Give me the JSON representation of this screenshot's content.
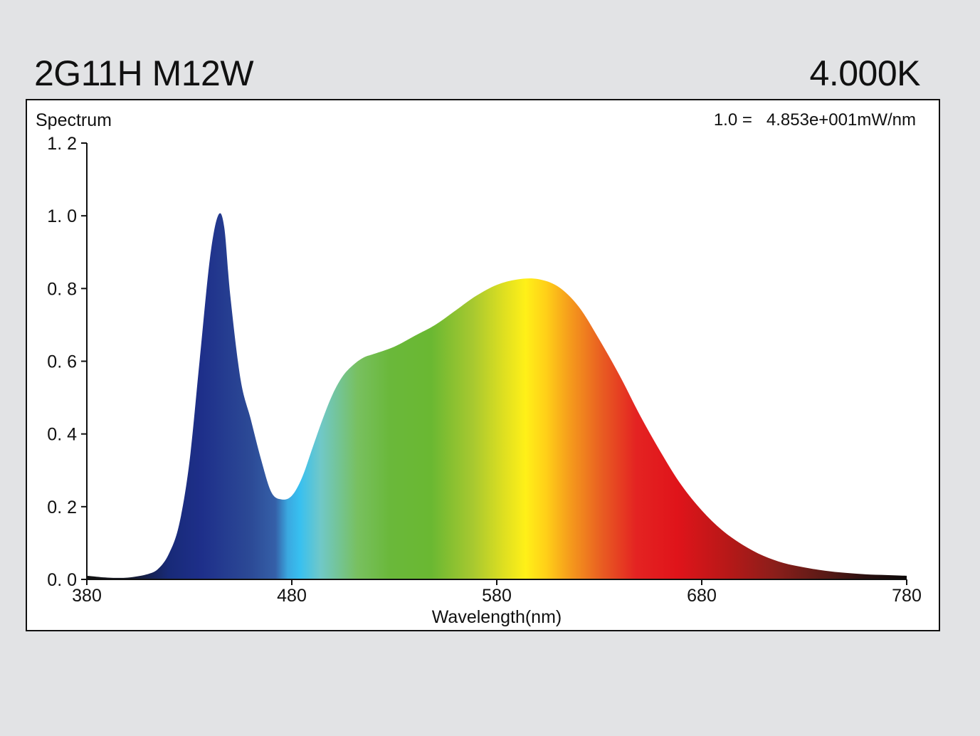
{
  "header": {
    "product": "2G11H M12W",
    "cct": "4.000K"
  },
  "panel": {
    "title": "Spectrum",
    "scale_note": "1.0 =   4.853e+001mW/nm"
  },
  "chart_data": {
    "type": "area",
    "title": "Spectrum",
    "xlabel": "Wavelength(nm)",
    "ylabel": "",
    "xlim": [
      380,
      780
    ],
    "ylim": [
      0.0,
      1.2
    ],
    "x_ticks": [
      380,
      480,
      580,
      680,
      780
    ],
    "y_ticks": [
      0.0,
      0.2,
      0.4,
      0.6,
      0.8,
      1.0,
      1.2
    ],
    "y_tick_labels": [
      "0. 0",
      "0. 2",
      "0. 4",
      "0. 6",
      "0. 8",
      "1. 0",
      "1. 2"
    ],
    "grid": false,
    "fill": "visible-spectrum gradient",
    "points": [
      [
        380,
        0.01
      ],
      [
        390,
        0.005
      ],
      [
        400,
        0.005
      ],
      [
        410,
        0.015
      ],
      [
        415,
        0.03
      ],
      [
        420,
        0.07
      ],
      [
        425,
        0.15
      ],
      [
        430,
        0.32
      ],
      [
        435,
        0.6
      ],
      [
        440,
        0.88
      ],
      [
        444,
        1.0
      ],
      [
        447,
        0.97
      ],
      [
        450,
        0.78
      ],
      [
        455,
        0.55
      ],
      [
        460,
        0.44
      ],
      [
        465,
        0.33
      ],
      [
        470,
        0.24
      ],
      [
        475,
        0.22
      ],
      [
        480,
        0.23
      ],
      [
        485,
        0.28
      ],
      [
        490,
        0.36
      ],
      [
        495,
        0.44
      ],
      [
        500,
        0.51
      ],
      [
        505,
        0.56
      ],
      [
        510,
        0.59
      ],
      [
        515,
        0.61
      ],
      [
        520,
        0.62
      ],
      [
        530,
        0.64
      ],
      [
        540,
        0.67
      ],
      [
        550,
        0.7
      ],
      [
        560,
        0.74
      ],
      [
        570,
        0.78
      ],
      [
        580,
        0.81
      ],
      [
        590,
        0.825
      ],
      [
        600,
        0.826
      ],
      [
        610,
        0.805
      ],
      [
        620,
        0.75
      ],
      [
        630,
        0.66
      ],
      [
        640,
        0.56
      ],
      [
        650,
        0.45
      ],
      [
        660,
        0.35
      ],
      [
        670,
        0.26
      ],
      [
        680,
        0.19
      ],
      [
        690,
        0.135
      ],
      [
        700,
        0.095
      ],
      [
        710,
        0.065
      ],
      [
        720,
        0.045
      ],
      [
        730,
        0.033
      ],
      [
        740,
        0.024
      ],
      [
        750,
        0.018
      ],
      [
        760,
        0.014
      ],
      [
        770,
        0.012
      ],
      [
        780,
        0.01
      ]
    ],
    "colors": {
      "background": "#e2e3e5",
      "plot_background": "#ffffff",
      "axis": "#111111"
    }
  }
}
